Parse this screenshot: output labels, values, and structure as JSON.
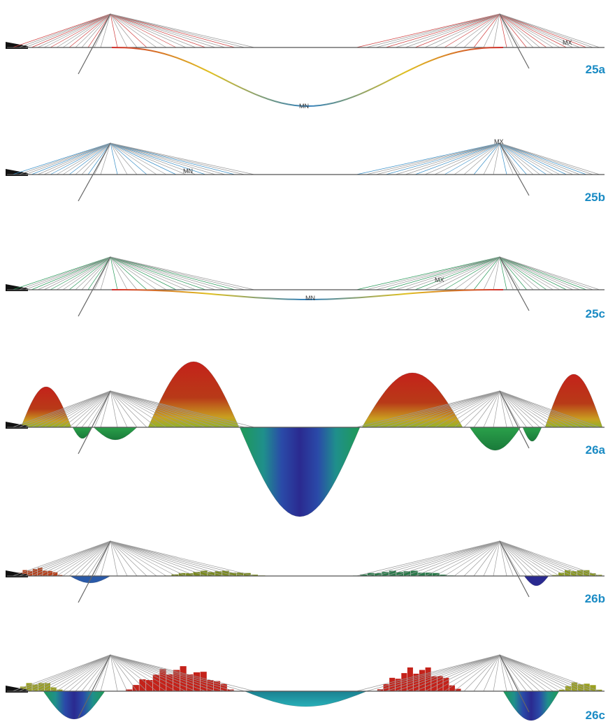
{
  "panels": [
    {
      "label": "25a",
      "markers": [
        "MX",
        "MN"
      ]
    },
    {
      "label": "25b",
      "markers": [
        "MX",
        "MN"
      ]
    },
    {
      "label": "25c",
      "markers": [
        "MN",
        "MX"
      ]
    },
    {
      "label": "26a"
    },
    {
      "label": "26b"
    },
    {
      "label": "26c"
    }
  ]
}
